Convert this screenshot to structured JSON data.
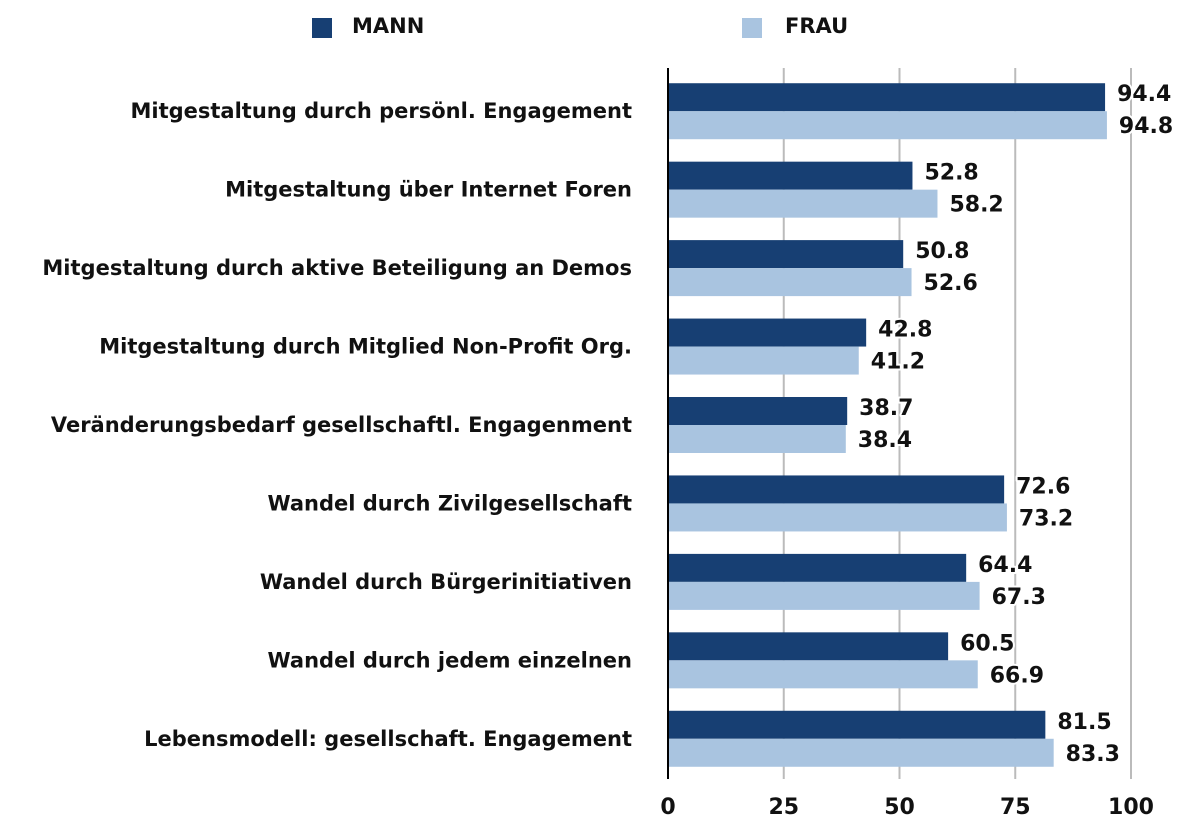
{
  "chart_data": {
    "type": "hbar",
    "categories": [
      "Mitgestaltung durch persönl. Engagement",
      "Mitgestaltung über Internet Foren",
      "Mitgestaltung durch aktive Beteiligung an Demos",
      "Mitgestaltung durch Mitglied Non-Profit Org.",
      "Veränderungsbedarf gesellschaftl. Engagenment",
      "Wandel durch Zivilgesellschaft",
      "Wandel durch Bürgerinitiativen",
      "Wandel durch jedem einzelnen",
      "Lebensmodell: gesellschaft. Engagement"
    ],
    "series": [
      {
        "name": "MANN",
        "color": "#173f73",
        "values": [
          94.4,
          52.8,
          50.8,
          42.8,
          38.7,
          72.6,
          64.4,
          60.5,
          81.5
        ]
      },
      {
        "name": "FRAU",
        "color": "#a9c4e0",
        "values": [
          94.8,
          58.2,
          52.6,
          41.2,
          38.4,
          73.2,
          67.3,
          66.9,
          83.3
        ]
      }
    ],
    "xlim": [
      0,
      100
    ],
    "xticks": [
      0,
      25,
      50,
      75,
      100
    ],
    "grid": true,
    "legend": "top"
  }
}
